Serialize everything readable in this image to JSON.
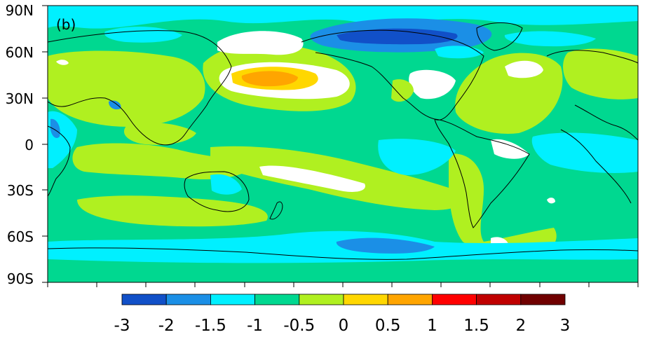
{
  "panel_label": "(b)",
  "y_axis": {
    "tick_labels": [
      "90N",
      "60N",
      "30N",
      "0",
      "30S",
      "60S",
      "90S"
    ],
    "values": [
      90,
      60,
      30,
      0,
      -30,
      -60,
      -90
    ]
  },
  "colorbar": {
    "tick_labels": [
      "-3",
      "-2",
      "-1.5",
      "-1",
      "-0.5",
      "0",
      "0.5",
      "1",
      "1.5",
      "2",
      "3"
    ],
    "colors": [
      "#1150c8",
      "#1b8fe6",
      "#00f0ff",
      "#00d890",
      "#b0f020",
      "#ffd700",
      "#ffa500",
      "#ff0000",
      "#c00000",
      "#700000"
    ]
  },
  "colors": {
    "background_field": "#00d890",
    "ocean_outline": "#000000",
    "land_outline": "#000000"
  }
}
